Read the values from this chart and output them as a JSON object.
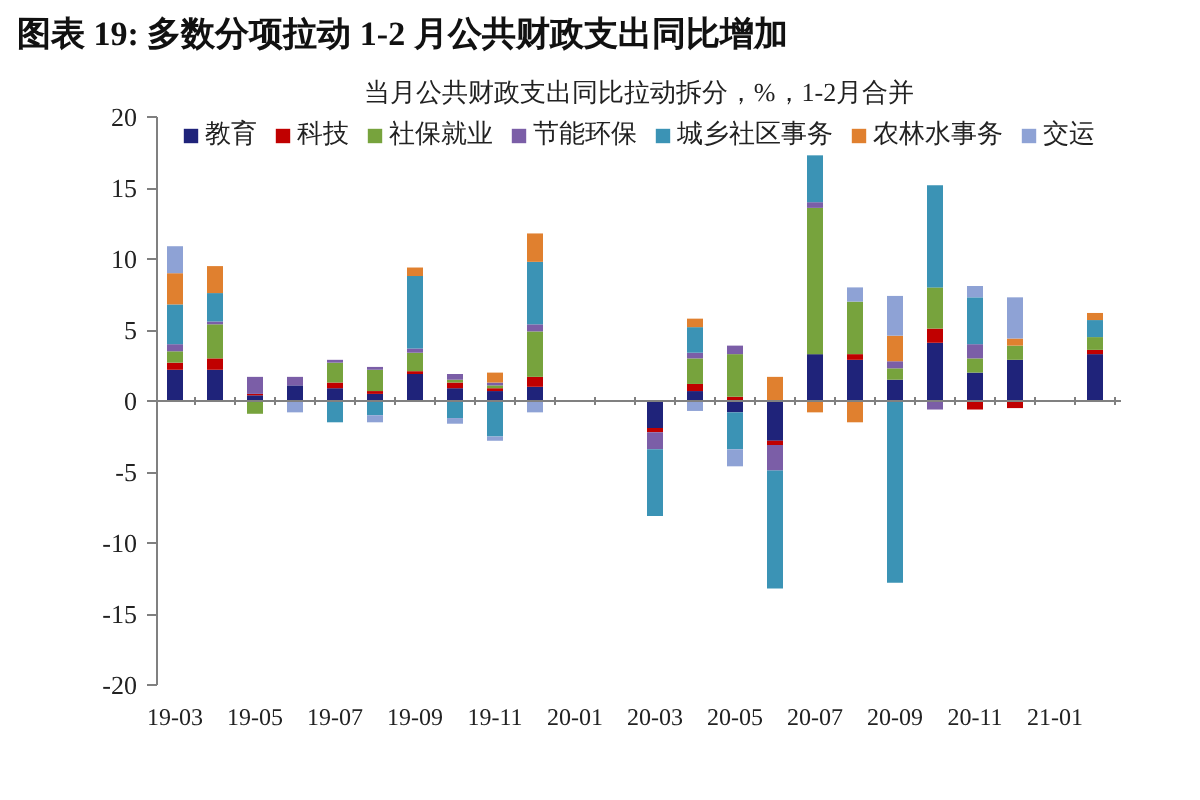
{
  "chart_data": {
    "type": "bar",
    "stacked": true,
    "title": "图表 19: 多数分项拉动 1-2 月公共财政支出同比增加",
    "subtitle": "当月公共财政支出同比拉动拆分，%，1-2月合并",
    "categories": [
      "19-03",
      null,
      "19-05",
      null,
      "19-07",
      null,
      "19-09",
      null,
      "19-11",
      null,
      "20-01",
      null,
      "20-03",
      null,
      "20-05",
      null,
      "20-07",
      null,
      "20-09",
      null,
      "20-11",
      null,
      "21-01",
      null
    ],
    "ylim": [
      -20,
      20
    ],
    "yticks": [
      -20,
      -15,
      -10,
      -5,
      0,
      5,
      10,
      15,
      20
    ],
    "legend": "top",
    "series": [
      {
        "name": "教育",
        "color": "#1f237a",
        "values": [
          2.2,
          2.2,
          0.4,
          1.1,
          0.9,
          0.5,
          1.9,
          0.9,
          0.7,
          1.0,
          null,
          null,
          -1.9,
          0.7,
          -0.8,
          -2.8,
          3.3,
          2.9,
          1.5,
          4.1,
          2.0,
          2.9,
          null,
          3.3
        ]
      },
      {
        "name": "科技",
        "color": "#c00000",
        "values": [
          0.5,
          0.8,
          0.1,
          null,
          0.4,
          0.2,
          0.2,
          0.4,
          0.2,
          0.7,
          null,
          null,
          -0.3,
          0.5,
          0.3,
          -0.3,
          null,
          0.4,
          null,
          1.0,
          -0.6,
          -0.5,
          null,
          0.3
        ]
      },
      {
        "name": "社保就业",
        "color": "#77a33d",
        "values": [
          0.8,
          2.4,
          -0.9,
          null,
          1.4,
          1.5,
          1.3,
          0.2,
          0.2,
          3.2,
          null,
          null,
          null,
          1.8,
          3.0,
          null,
          10.3,
          3.7,
          0.8,
          2.9,
          1.0,
          1.0,
          null,
          0.9
        ]
      },
      {
        "name": "节能环保",
        "color": "#7b5ea7",
        "values": [
          0.5,
          0.2,
          1.2,
          0.6,
          0.2,
          0.2,
          0.3,
          0.4,
          0.2,
          0.5,
          null,
          null,
          -1.2,
          0.4,
          0.6,
          -1.8,
          0.4,
          null,
          0.5,
          -0.6,
          1.0,
          null,
          null,
          null
        ]
      },
      {
        "name": "城乡社区事务",
        "color": "#3b93b5",
        "values": [
          2.8,
          2.0,
          null,
          null,
          -1.5,
          -1.0,
          5.1,
          -1.2,
          -2.5,
          4.4,
          null,
          null,
          -4.7,
          1.8,
          -2.6,
          -8.3,
          3.3,
          null,
          -12.8,
          7.2,
          3.3,
          null,
          null,
          1.2
        ]
      },
      {
        "name": "农林水事务",
        "color": "#e0802f",
        "values": [
          2.2,
          1.9,
          null,
          null,
          null,
          null,
          0.6,
          null,
          0.7,
          2.0,
          null,
          null,
          null,
          0.6,
          null,
          1.7,
          -0.8,
          -1.5,
          1.8,
          null,
          null,
          0.5,
          null,
          0.5
        ]
      },
      {
        "name": "交运",
        "color": "#8ea2d5",
        "values": [
          1.9,
          null,
          null,
          -0.8,
          null,
          -0.5,
          null,
          -0.4,
          -0.3,
          -0.8,
          null,
          null,
          null,
          -0.7,
          -1.2,
          null,
          null,
          1.0,
          2.8,
          null,
          0.8,
          2.9,
          null,
          null
        ]
      }
    ]
  }
}
